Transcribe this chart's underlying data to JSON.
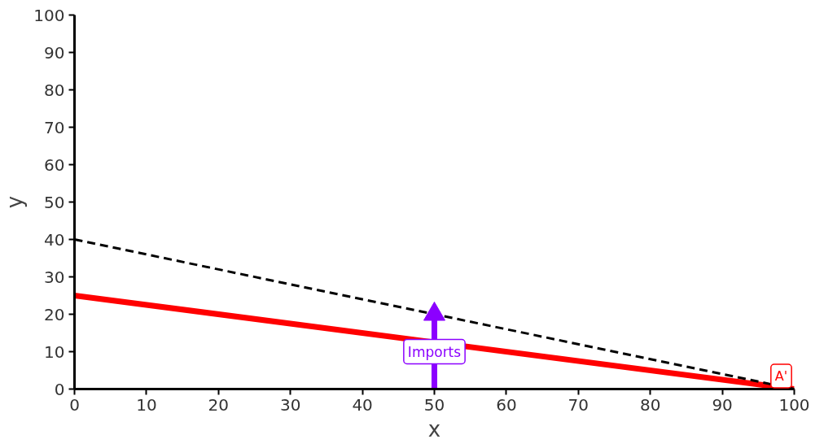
{
  "chart_data": {
    "type": "line",
    "xlabel": "x",
    "ylabel": "y",
    "xlim": [
      0,
      100
    ],
    "ylim": [
      0,
      100
    ],
    "xticks": [
      0,
      10,
      20,
      30,
      40,
      50,
      60,
      70,
      80,
      90,
      100
    ],
    "yticks": [
      0,
      10,
      20,
      30,
      40,
      50,
      60,
      70,
      80,
      90,
      100
    ],
    "grid": false,
    "series": [
      {
        "color": "#ff0000",
        "x": [
          0,
          100
        ],
        "values": [
          25,
          0
        ],
        "line_style": "solid"
      },
      {
        "color": "#000000",
        "x": [
          0,
          100
        ],
        "values": [
          40,
          0
        ],
        "line_style": "dashed"
      },
      {
        "color": "#8b00ff",
        "x": [
          50,
          50
        ],
        "values": [
          0,
          20
        ],
        "line_style": "solid",
        "marker": "triangle"
      }
    ],
    "annotations": [
      {
        "text": "Imports",
        "x": 50,
        "y": 10
      },
      {
        "text": "A'",
        "x": 100,
        "y": 0
      }
    ]
  }
}
